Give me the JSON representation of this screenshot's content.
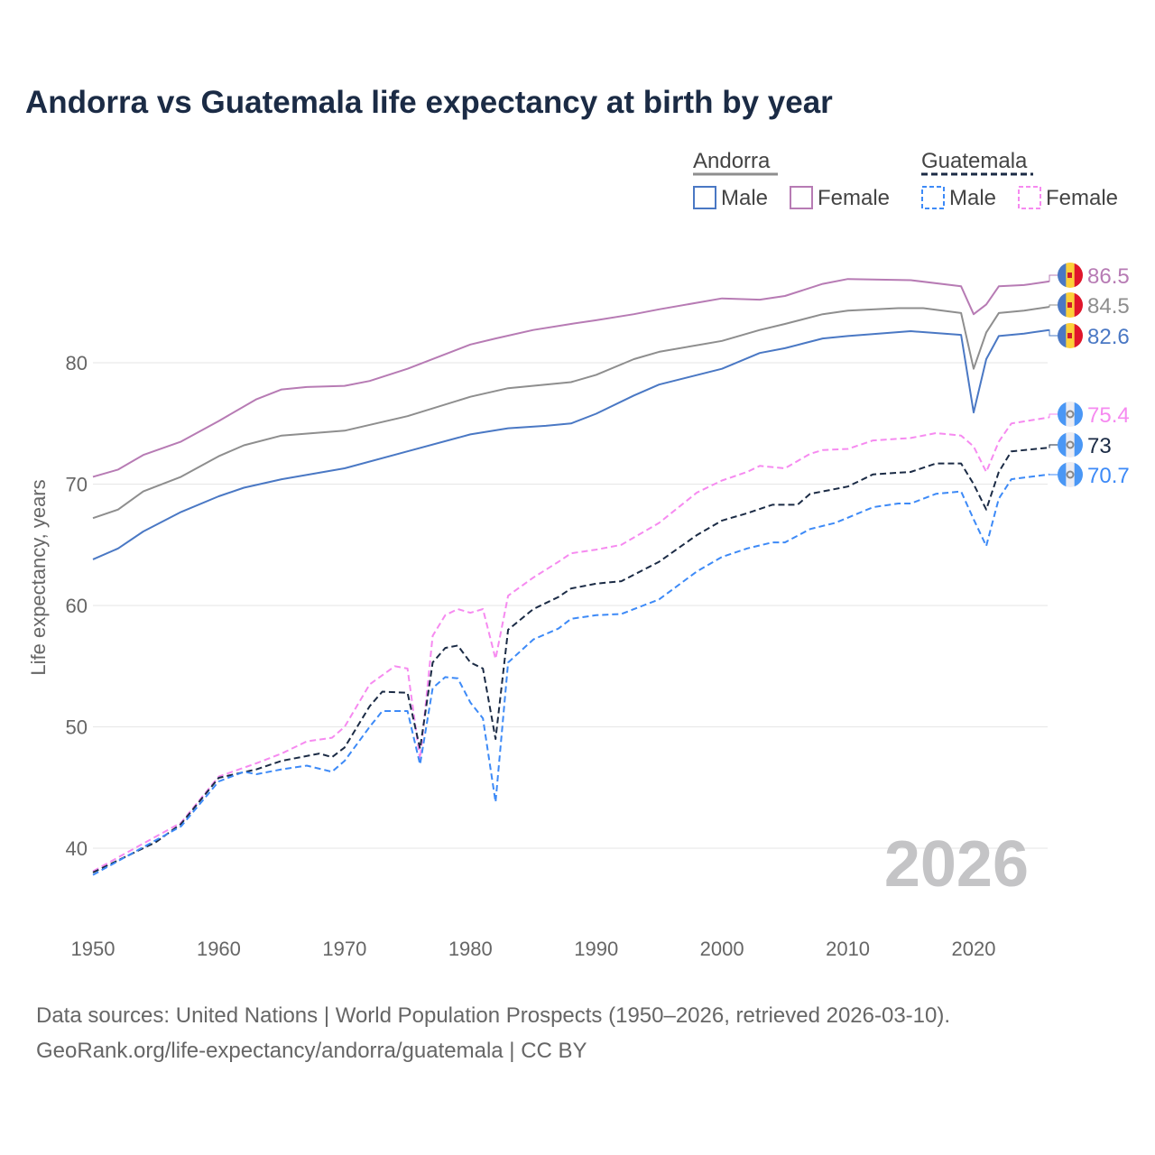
{
  "chart_data": {
    "type": "line",
    "title": "Andorra vs Guatemala life expectancy at birth by year",
    "ylabel": "Life expectancy, years",
    "xlabel": "",
    "xlim": [
      1950,
      2026
    ],
    "ylim": [
      35,
      90
    ],
    "xticks": [
      "1950",
      "1960",
      "1970",
      "1980",
      "1990",
      "2000",
      "2010",
      "2020"
    ],
    "yticks": [
      "40",
      "50",
      "60",
      "70",
      "80"
    ],
    "grid": true,
    "year_watermark": "2026",
    "legend": {
      "placement": "top-right",
      "groups": [
        {
          "name": "Andorra",
          "entries": [
            "Male",
            "Female"
          ]
        },
        {
          "name": "Guatemala",
          "entries": [
            "Male",
            "Female"
          ]
        }
      ]
    },
    "series": [
      {
        "name": "Andorra Female",
        "color": "#b77bb4",
        "dash": false,
        "end_label": "86.5",
        "flag": "andorra",
        "points": [
          [
            1950,
            70.6
          ],
          [
            1952,
            71.2
          ],
          [
            1954,
            72.4
          ],
          [
            1957,
            73.5
          ],
          [
            1960,
            75.2
          ],
          [
            1963,
            77
          ],
          [
            1965,
            77.8
          ],
          [
            1967,
            78
          ],
          [
            1970,
            78.1
          ],
          [
            1972,
            78.5
          ],
          [
            1975,
            79.5
          ],
          [
            1978,
            80.7
          ],
          [
            1980,
            81.5
          ],
          [
            1982,
            82
          ],
          [
            1985,
            82.7
          ],
          [
            1988,
            83.2
          ],
          [
            1990,
            83.5
          ],
          [
            1993,
            84
          ],
          [
            1995,
            84.4
          ],
          [
            2000,
            85.3
          ],
          [
            2003,
            85.2
          ],
          [
            2005,
            85.5
          ],
          [
            2008,
            86.5
          ],
          [
            2010,
            86.9
          ],
          [
            2015,
            86.8
          ],
          [
            2019,
            86.3
          ],
          [
            2020,
            84
          ],
          [
            2021,
            84.8
          ],
          [
            2022,
            86.3
          ],
          [
            2024,
            86.4
          ],
          [
            2026,
            86.7
          ]
        ]
      },
      {
        "name": "Andorra Total",
        "color": "#8e8e8e",
        "dash": false,
        "end_label": "84.5",
        "flag": "andorra",
        "points": [
          [
            1950,
            67.2
          ],
          [
            1952,
            67.9
          ],
          [
            1954,
            69.4
          ],
          [
            1957,
            70.6
          ],
          [
            1960,
            72.3
          ],
          [
            1962,
            73.2
          ],
          [
            1965,
            74
          ],
          [
            1970,
            74.4
          ],
          [
            1975,
            75.6
          ],
          [
            1980,
            77.2
          ],
          [
            1983,
            77.9
          ],
          [
            1988,
            78.4
          ],
          [
            1990,
            79
          ],
          [
            1993,
            80.3
          ],
          [
            1995,
            80.9
          ],
          [
            2000,
            81.8
          ],
          [
            2003,
            82.7
          ],
          [
            2005,
            83.2
          ],
          [
            2008,
            84
          ],
          [
            2010,
            84.3
          ],
          [
            2014,
            84.5
          ],
          [
            2016,
            84.5
          ],
          [
            2019,
            84.1
          ],
          [
            2020,
            79.5
          ],
          [
            2021,
            82.5
          ],
          [
            2022,
            84.1
          ],
          [
            2024,
            84.3
          ],
          [
            2026,
            84.6
          ]
        ]
      },
      {
        "name": "Andorra Male",
        "color": "#4a78c4",
        "dash": false,
        "end_label": "82.6",
        "flag": "andorra",
        "points": [
          [
            1950,
            63.8
          ],
          [
            1952,
            64.7
          ],
          [
            1954,
            66.1
          ],
          [
            1957,
            67.7
          ],
          [
            1960,
            69
          ],
          [
            1962,
            69.7
          ],
          [
            1965,
            70.4
          ],
          [
            1970,
            71.3
          ],
          [
            1975,
            72.7
          ],
          [
            1980,
            74.1
          ],
          [
            1983,
            74.6
          ],
          [
            1986,
            74.8
          ],
          [
            1988,
            75
          ],
          [
            1990,
            75.8
          ],
          [
            1993,
            77.3
          ],
          [
            1995,
            78.2
          ],
          [
            2000,
            79.5
          ],
          [
            2003,
            80.8
          ],
          [
            2005,
            81.2
          ],
          [
            2008,
            82
          ],
          [
            2010,
            82.2
          ],
          [
            2015,
            82.6
          ],
          [
            2019,
            82.3
          ],
          [
            2020,
            75.9
          ],
          [
            2021,
            80.3
          ],
          [
            2022,
            82.2
          ],
          [
            2024,
            82.4
          ],
          [
            2026,
            82.7
          ]
        ]
      },
      {
        "name": "Guatemala Female",
        "color": "#f68af0",
        "dash": true,
        "end_label": "75.4",
        "flag": "guatemala",
        "points": [
          [
            1950,
            38.1
          ],
          [
            1957,
            42.1
          ],
          [
            1960,
            45.9
          ],
          [
            1963,
            47
          ],
          [
            1965,
            47.8
          ],
          [
            1967,
            48.8
          ],
          [
            1969,
            49.1
          ],
          [
            1970,
            50
          ],
          [
            1972,
            53.5
          ],
          [
            1974,
            55
          ],
          [
            1975,
            54.8
          ],
          [
            1976,
            47.3
          ],
          [
            1977,
            57.5
          ],
          [
            1978,
            59.2
          ],
          [
            1979,
            59.7
          ],
          [
            1980,
            59.4
          ],
          [
            1981,
            59.7
          ],
          [
            1982,
            55.6
          ],
          [
            1983,
            60.8
          ],
          [
            1985,
            62.3
          ],
          [
            1987,
            63.6
          ],
          [
            1988,
            64.3
          ],
          [
            1990,
            64.6
          ],
          [
            1992,
            65
          ],
          [
            1995,
            66.8
          ],
          [
            1998,
            69.3
          ],
          [
            2000,
            70.3
          ],
          [
            2002,
            71
          ],
          [
            2003,
            71.5
          ],
          [
            2005,
            71.3
          ],
          [
            2007,
            72.5
          ],
          [
            2008,
            72.8
          ],
          [
            2010,
            72.9
          ],
          [
            2012,
            73.6
          ],
          [
            2015,
            73.8
          ],
          [
            2017,
            74.2
          ],
          [
            2019,
            74
          ],
          [
            2020,
            73.1
          ],
          [
            2021,
            71
          ],
          [
            2022,
            73.5
          ],
          [
            2023,
            75
          ],
          [
            2026,
            75.5
          ]
        ]
      },
      {
        "name": "Guatemala Total",
        "color": "#1b2b45",
        "dash": true,
        "end_label": "73",
        "flag": "guatemala",
        "points": [
          [
            1950,
            38
          ],
          [
            1955,
            40.5
          ],
          [
            1957,
            42
          ],
          [
            1960,
            45.8
          ],
          [
            1963,
            46.5
          ],
          [
            1965,
            47.2
          ],
          [
            1968,
            47.8
          ],
          [
            1969,
            47.5
          ],
          [
            1970,
            48.3
          ],
          [
            1972,
            51.7
          ],
          [
            1973,
            52.9
          ],
          [
            1975,
            52.8
          ],
          [
            1976,
            48.2
          ],
          [
            1977,
            55.3
          ],
          [
            1978,
            56.5
          ],
          [
            1979,
            56.7
          ],
          [
            1980,
            55.3
          ],
          [
            1981,
            54.8
          ],
          [
            1982,
            49
          ],
          [
            1983,
            58
          ],
          [
            1985,
            59.7
          ],
          [
            1987,
            60.7
          ],
          [
            1988,
            61.4
          ],
          [
            1990,
            61.8
          ],
          [
            1992,
            62
          ],
          [
            1995,
            63.6
          ],
          [
            1998,
            65.8
          ],
          [
            2000,
            67
          ],
          [
            2002,
            67.6
          ],
          [
            2004,
            68.3
          ],
          [
            2006,
            68.3
          ],
          [
            2007,
            69.2
          ],
          [
            2010,
            69.8
          ],
          [
            2012,
            70.8
          ],
          [
            2015,
            71
          ],
          [
            2017,
            71.7
          ],
          [
            2019,
            71.7
          ],
          [
            2020,
            70
          ],
          [
            2021,
            67.9
          ],
          [
            2022,
            71
          ],
          [
            2023,
            72.7
          ],
          [
            2026,
            73
          ]
        ]
      },
      {
        "name": "Guatemala Male",
        "color": "#3d8af7",
        "dash": true,
        "end_label": "70.7",
        "flag": "guatemala",
        "points": [
          [
            1950,
            37.8
          ],
          [
            1957,
            41.8
          ],
          [
            1960,
            45.5
          ],
          [
            1962,
            46.3
          ],
          [
            1963,
            46.1
          ],
          [
            1965,
            46.5
          ],
          [
            1967,
            46.8
          ],
          [
            1969,
            46.3
          ],
          [
            1970,
            47.2
          ],
          [
            1972,
            50
          ],
          [
            1973,
            51.3
          ],
          [
            1975,
            51.3
          ],
          [
            1976,
            46.9
          ],
          [
            1977,
            53.2
          ],
          [
            1978,
            54.1
          ],
          [
            1979,
            54
          ],
          [
            1980,
            52
          ],
          [
            1981,
            50.7
          ],
          [
            1982,
            43.8
          ],
          [
            1983,
            55.3
          ],
          [
            1985,
            57.2
          ],
          [
            1987,
            58.1
          ],
          [
            1988,
            58.9
          ],
          [
            1990,
            59.2
          ],
          [
            1992,
            59.3
          ],
          [
            1995,
            60.5
          ],
          [
            1998,
            62.8
          ],
          [
            2000,
            64
          ],
          [
            2002,
            64.7
          ],
          [
            2004,
            65.2
          ],
          [
            2005,
            65.2
          ],
          [
            2007,
            66.3
          ],
          [
            2009,
            66.8
          ],
          [
            2012,
            68.1
          ],
          [
            2014,
            68.4
          ],
          [
            2015,
            68.4
          ],
          [
            2017,
            69.2
          ],
          [
            2019,
            69.4
          ],
          [
            2020,
            67.1
          ],
          [
            2021,
            64.9
          ],
          [
            2022,
            68.8
          ],
          [
            2023,
            70.4
          ],
          [
            2026,
            70.8
          ]
        ]
      }
    ]
  },
  "footer": {
    "line1": "Data sources: United Nations | World Population Prospects (1950–2026, retrieved 2026-03-10).",
    "line2": "GeoRank.org/life-expectancy/andorra/guatemala | CC BY"
  }
}
